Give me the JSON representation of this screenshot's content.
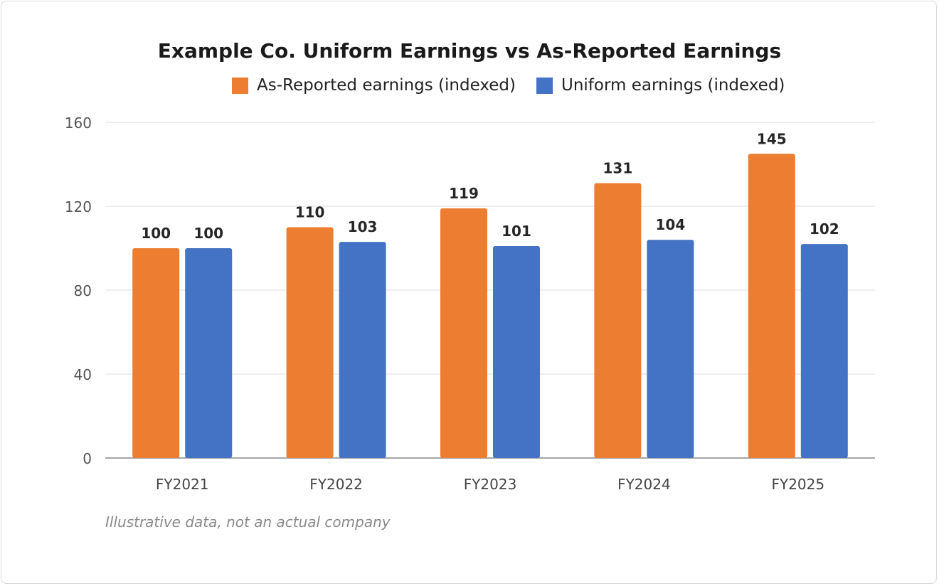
{
  "chart_data": {
    "type": "bar",
    "title": "Example Co. Uniform Earnings vs As-Reported Earnings",
    "categories": [
      "FY2021",
      "FY2022",
      "FY2023",
      "FY2024",
      "FY2025"
    ],
    "series": [
      {
        "name": "As-Reported earnings (indexed)",
        "color": "#ED7D31",
        "values": [
          100,
          110,
          119,
          131,
          145
        ]
      },
      {
        "name": "Uniform earnings (indexed)",
        "color": "#4472C4",
        "values": [
          100,
          103,
          101,
          104,
          102
        ]
      }
    ],
    "ylim": [
      0,
      160
    ],
    "yticks": [
      0,
      40,
      80,
      120,
      160
    ],
    "grid": true,
    "legend_position": "top",
    "data_labels": true
  },
  "footnote": "Illustrative data, not an actual company"
}
